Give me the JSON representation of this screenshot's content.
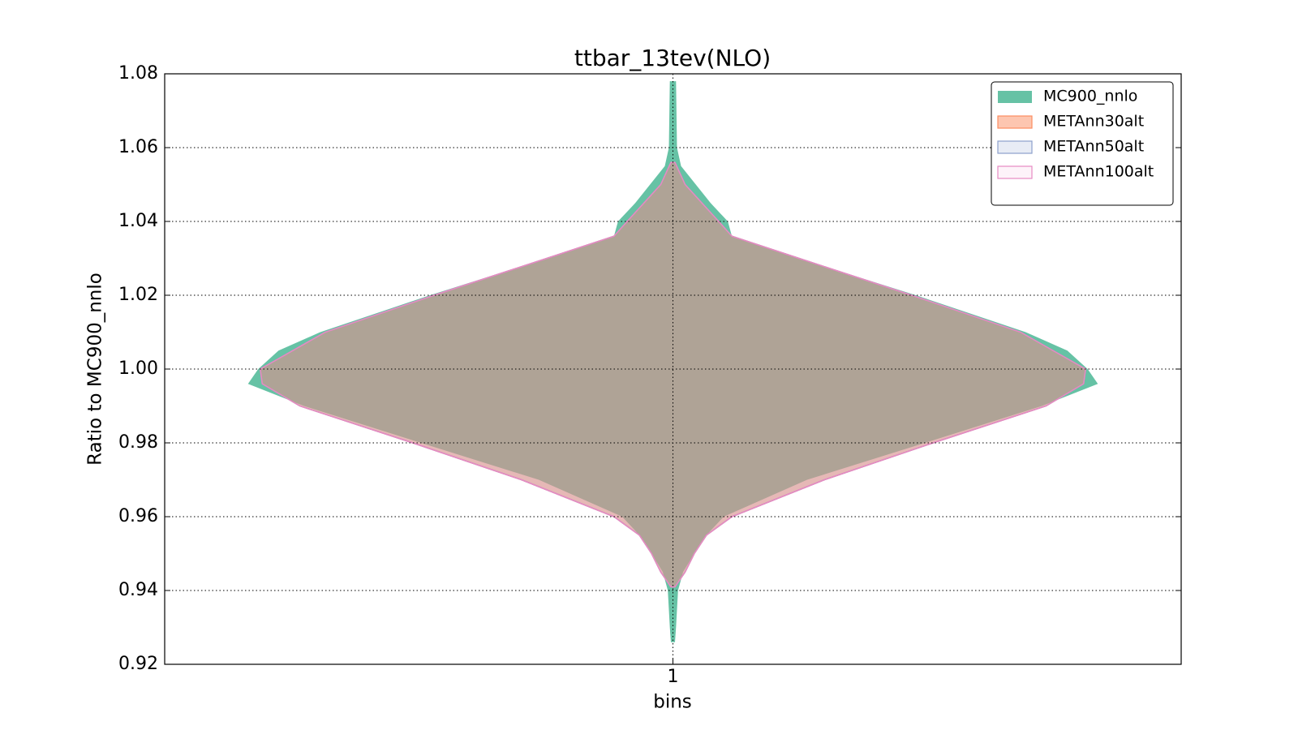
{
  "chart_data": {
    "type": "violin",
    "title": "ttbar_13tev(NLO)",
    "x_label": "bins",
    "y_label": "Ratio to MC900_nnlo",
    "categories": [
      "1"
    ],
    "xlim": [
      0.5,
      1.5
    ],
    "ylim": [
      0.92,
      1.08
    ],
    "yticks": [
      {
        "value": 0.92,
        "label": "0.92"
      },
      {
        "value": 0.94,
        "label": "0.94"
      },
      {
        "value": 0.96,
        "label": "0.96"
      },
      {
        "value": 0.98,
        "label": "0.98"
      },
      {
        "value": 1.0,
        "label": "1.00"
      },
      {
        "value": 1.02,
        "label": "1.02"
      },
      {
        "value": 1.04,
        "label": "1.04"
      },
      {
        "value": 1.06,
        "label": "1.06"
      },
      {
        "value": 1.08,
        "label": "1.08"
      }
    ],
    "grid": true,
    "legend": "upper right",
    "series": [
      {
        "name": "MC900_nnlo",
        "color": "#66c2a5",
        "opacity": 1,
        "y": [
          1.078,
          1.06,
          1.055,
          1.045,
          1.04,
          1.036,
          1.03,
          1.02,
          1.01,
          1.005,
          1.0,
          0.996,
          0.99,
          0.98,
          0.97,
          0.96,
          0.955,
          0.95,
          0.945,
          0.94,
          0.93,
          0.926
        ],
        "halfwidth": [
          0.003,
          0.004,
          0.008,
          0.037,
          0.054,
          0.058,
          0.124,
          0.239,
          0.347,
          0.388,
          0.408,
          0.418,
          0.363,
          0.248,
          0.132,
          0.05,
          0.033,
          0.021,
          0.01,
          0.005,
          0.003,
          0.002
        ]
      },
      {
        "name": "METAnn30alt",
        "color": "#fc8d62",
        "opacity": 0.5,
        "y": [
          1.056,
          1.05,
          1.04,
          1.036,
          1.03,
          1.02,
          1.01,
          1.0,
          0.996,
          0.99,
          0.98,
          0.97,
          0.96,
          0.955,
          0.95,
          0.945,
          0.941
        ],
        "halfwidth": [
          0.002,
          0.012,
          0.045,
          0.058,
          0.124,
          0.235,
          0.342,
          0.406,
          0.404,
          0.367,
          0.256,
          0.149,
          0.058,
          0.033,
          0.021,
          0.012,
          0.002
        ]
      },
      {
        "name": "METAnn50alt",
        "color": "#8da0cb",
        "opacity": 0.2,
        "y": [
          1.056,
          1.05,
          1.04,
          1.036,
          1.03,
          1.02,
          1.01,
          1.0,
          0.996,
          0.99,
          0.98,
          0.97,
          0.96,
          0.955,
          0.95,
          0.945,
          0.941
        ],
        "halfwidth": [
          0.002,
          0.012,
          0.045,
          0.058,
          0.124,
          0.235,
          0.342,
          0.406,
          0.404,
          0.367,
          0.256,
          0.149,
          0.058,
          0.033,
          0.021,
          0.012,
          0.002
        ]
      },
      {
        "name": "METAnn100alt",
        "color": "#e78ac3",
        "opacity": 0.1,
        "y": [
          1.056,
          1.05,
          1.04,
          1.036,
          1.03,
          1.02,
          1.01,
          1.0,
          0.996,
          0.99,
          0.98,
          0.97,
          0.96,
          0.955,
          0.95,
          0.945,
          0.941
        ],
        "halfwidth": [
          0.002,
          0.012,
          0.045,
          0.058,
          0.124,
          0.235,
          0.342,
          0.406,
          0.404,
          0.367,
          0.256,
          0.149,
          0.058,
          0.033,
          0.021,
          0.012,
          0.002
        ]
      }
    ]
  }
}
